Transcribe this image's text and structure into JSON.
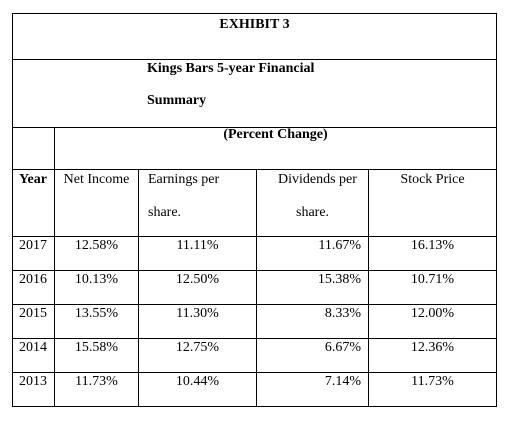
{
  "exhibit": {
    "title": "EXHIBIT 3",
    "subtitle_line1": "Kings Bars 5-year Financial",
    "subtitle_line2": "Summary",
    "percent_change": "(Percent Change)"
  },
  "table": {
    "headers": {
      "year": "Year",
      "net_income": "Net Income",
      "eps_line1": "Earnings per",
      "eps_line2": "share.",
      "dps_line1": "Dividends per",
      "dps_line2": "share.",
      "stock_price": "Stock Price"
    },
    "rows": [
      {
        "year": "2017",
        "net_income": "12.58%",
        "eps": "11.11%",
        "dps": "11.67%",
        "price": "16.13%"
      },
      {
        "year": "2016",
        "net_income": "10.13%",
        "eps": "12.50%",
        "dps": "15.38%",
        "price": "10.71%"
      },
      {
        "year": "2015",
        "net_income": "13.55%",
        "eps": "11.30%",
        "dps": "8.33%",
        "price": "12.00%"
      },
      {
        "year": "2014",
        "net_income": "15.58%",
        "eps": "12.75%",
        "dps": "6.67%",
        "price": "12.36%"
      },
      {
        "year": "2013",
        "net_income": "11.73%",
        "eps": "10.44%",
        "dps": "7.14%",
        "price": "11.73%"
      }
    ]
  }
}
